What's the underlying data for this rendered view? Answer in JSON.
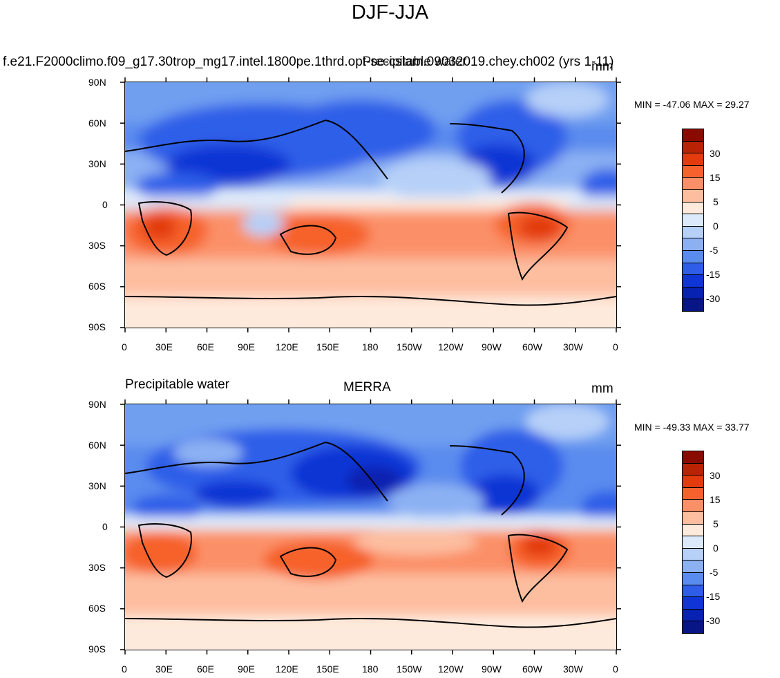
{
  "title": "DJF-JJA",
  "panel1": {
    "left_text": "f.e21.F2000climo.f09_g17.30trop_mg17.intel.1800pe.1thrd.opt-se-cslam.09032019.chey.ch002 (yrs 1-11)",
    "center_text": "Precipitable water",
    "units": "mm",
    "minmax": "MIN = -47.06 MAX =  29.27"
  },
  "panel2": {
    "left_text": "Precipitable water",
    "center_text": "MERRA",
    "units": "mm",
    "minmax": "MIN = -49.33 MAX =  33.77"
  },
  "lat_labels": [
    "90N",
    "60N",
    "30N",
    "0",
    "30S",
    "60S",
    "90S"
  ],
  "lon_labels": [
    "0",
    "30E",
    "60E",
    "90E",
    "120E",
    "150E",
    "180",
    "150W",
    "120W",
    "90W",
    "60W",
    "30W",
    "0"
  ],
  "colorbar": {
    "labels": [
      "30",
      "15",
      "5",
      "0",
      "-5",
      "-15",
      "-30"
    ],
    "colors": [
      "#8b0a00",
      "#b82403",
      "#e23b0c",
      "#f6622c",
      "#fb9068",
      "#fdbea0",
      "#feeadc",
      "#dbe9fa",
      "#b6d0f8",
      "#8cb1f3",
      "#5a8bee",
      "#2e5ee8",
      "#0f35d4",
      "#0722b0",
      "#071586"
    ]
  }
}
